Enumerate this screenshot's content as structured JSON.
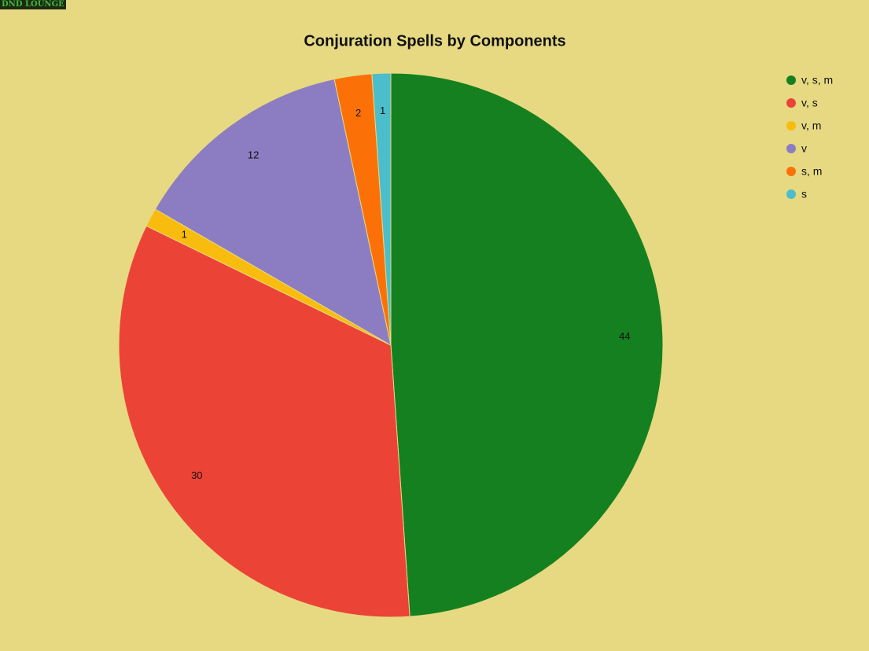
{
  "brand": "DND LOUNGE",
  "chart_data": {
    "type": "pie",
    "title": "Conjuration Spells by Components",
    "categories": [
      "v, s, m",
      "v, s",
      "v, m",
      "v",
      "s, m",
      "s"
    ],
    "values": [
      44,
      30,
      1,
      12,
      2,
      1
    ],
    "colors": [
      "#15801f",
      "#ec4337",
      "#f8bc0e",
      "#8c7dc2",
      "#fb7108",
      "#4cbdca"
    ],
    "legend": "right"
  }
}
